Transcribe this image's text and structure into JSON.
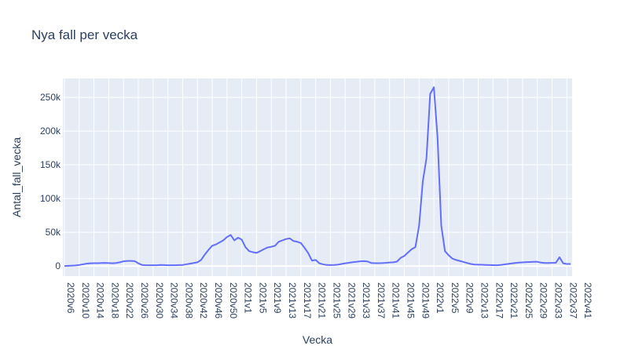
{
  "chart_data": {
    "type": "line",
    "title": "Nya fall per vecka",
    "xlabel": "Vecka",
    "ylabel": "Antal_fall_vecka",
    "ylim": [
      -15000,
      278000
    ],
    "y_ticks": [
      0,
      50000,
      100000,
      150000,
      200000,
      250000
    ],
    "y_tick_labels": [
      "0",
      "50k",
      "100k",
      "150k",
      "200k",
      "250k"
    ],
    "x_tick_labels": [
      "2020v6",
      "2020v10",
      "2020v14",
      "2020v18",
      "2020v22",
      "2020v26",
      "2020v30",
      "2020v34",
      "2020v38",
      "2020v42",
      "2020v46",
      "2020v50",
      "2021v1",
      "2021v5",
      "2021v9",
      "2021v13",
      "2021v17",
      "2021v21",
      "2021v25",
      "2021v29",
      "2021v33",
      "2021v37",
      "2021v41",
      "2021v45",
      "2021v49",
      "2022v1",
      "2022v5",
      "2022v9",
      "2022v13",
      "2022v17",
      "2022v21",
      "2022v25",
      "2022v29",
      "2022v33",
      "2022v37",
      "2022v41"
    ],
    "grid": true,
    "legend": "none",
    "line_color": "#636efa",
    "plot_bg": "#e5ecf6",
    "series": [
      {
        "values": [
          0,
          200,
          500,
          800,
          1500,
          2500,
          3500,
          4000,
          4200,
          4200,
          4400,
          4600,
          4300,
          4100,
          4500,
          5500,
          7000,
          7500,
          7500,
          7300,
          4000,
          1500,
          1200,
          1100,
          1100,
          1200,
          1600,
          1400,
          1200,
          1100,
          1200,
          1400,
          1600,
          2500,
          3500,
          4500,
          5500,
          9000,
          17000,
          24000,
          30000,
          32000,
          35000,
          38000,
          43000,
          46000,
          38000,
          42000,
          39000,
          28000,
          22000,
          20500,
          19500,
          22000,
          25000,
          27500,
          28500,
          30000,
          36000,
          38000,
          40000,
          41000,
          37000,
          36000,
          34000,
          27000,
          19000,
          8000,
          9000,
          4000,
          2500,
          1500,
          1400,
          1600,
          2000,
          3000,
          4000,
          4800,
          5600,
          6200,
          7000,
          7200,
          6800,
          4500,
          4200,
          4200,
          4300,
          4700,
          5200,
          5500,
          6500,
          12000,
          15000,
          20000,
          25000,
          28000,
          60000,
          125000,
          160000,
          255000,
          265000,
          190000,
          60000,
          22000,
          16000,
          11000,
          9000,
          7500,
          6000,
          4500,
          3000,
          2200,
          2000,
          1800,
          1600,
          1400,
          1300,
          1200,
          1500,
          2300,
          3000,
          3800,
          4500,
          5000,
          5400,
          5800,
          6000,
          6200,
          6300,
          5000,
          4500,
          4500,
          4600,
          4700,
          13000,
          4000,
          3000,
          3000
        ]
      }
    ]
  }
}
